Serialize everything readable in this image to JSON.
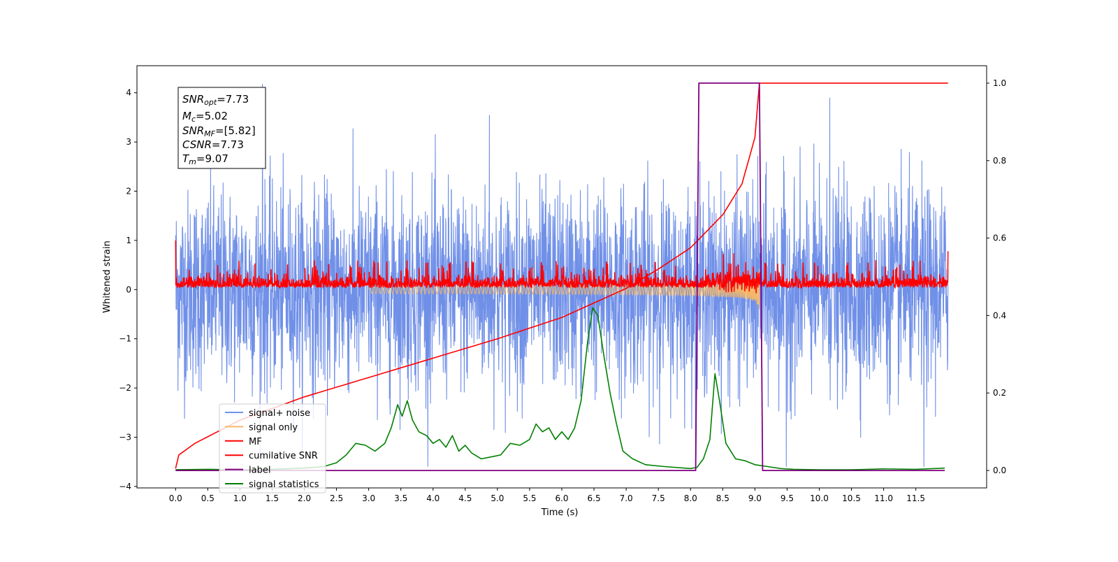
{
  "chart_data": {
    "type": "line",
    "xlabel": "Time (s)",
    "ylabel": "Whitened strain",
    "xlim": [
      -0.6,
      12.6
    ],
    "ylim_left": [
      -4.03,
      4.55
    ],
    "ylim_right": [
      -0.045,
      1.045
    ],
    "x_ticks": [
      "0.0",
      "0.5",
      "1.0",
      "1.5",
      "2.0",
      "2.5",
      "3.0",
      "3.5",
      "4.0",
      "4.5",
      "5.0",
      "5.5",
      "6.0",
      "6.5",
      "7.0",
      "7.5",
      "8.0",
      "8.5",
      "9.0",
      "9.5",
      "10.0",
      "10.5",
      "11.0",
      "11.5"
    ],
    "y_ticks_left": [
      "4",
      "3",
      "2",
      "1",
      "0",
      "−1",
      "−2",
      "−3",
      "−4"
    ],
    "y_ticks_right": [
      "1.0",
      "0.8",
      "0.6",
      "0.4",
      "0.2",
      "0.0"
    ],
    "grid": false,
    "legend_position": "lower-left",
    "legend": [
      {
        "label": "signal+ noise",
        "color": "#7090e8"
      },
      {
        "label": "signal only",
        "color": "#f5b86a"
      },
      {
        "label": "MF",
        "color": "#ff0000"
      },
      {
        "label": "cumilative SNR",
        "color": "#ff0000"
      },
      {
        "label": "label",
        "color": "#800080"
      },
      {
        "label": "signal statistics",
        "color": "#008000"
      }
    ],
    "info_box": {
      "snr_opt": {
        "sym": "SNR",
        "sub": "opt",
        "val": "=7.73"
      },
      "mc": {
        "sym": "M",
        "sub": "c",
        "val": "=5.02"
      },
      "snr_mf": {
        "sym": "SNR",
        "sub": "MF",
        "val": "=[5.82]"
      },
      "csnr": {
        "sym": "CSNR",
        "val": "=7.73"
      },
      "tm": {
        "sym": "T",
        "sub": "m",
        "val": "=9.07"
      }
    },
    "series": [
      {
        "name": "signal+ noise",
        "axis": "left",
        "color": "#7090e8",
        "description_values": {
          "x_range": [
            0.0,
            12.0
          ],
          "mean": 0.0,
          "std": 1.0,
          "max": 4.18,
          "min": -3.6
        }
      },
      {
        "name": "signal only",
        "axis": "left",
        "color": "#f5b86a",
        "chirp": {
          "t_start": 3.0,
          "t_merger": 9.07,
          "peak_amplitude": 0.6
        }
      },
      {
        "name": "MF",
        "axis": "left",
        "color": "#ff0000",
        "description_values": {
          "x_range": [
            0.0,
            12.0
          ],
          "baseline": 0.1,
          "max": 1.0,
          "min": -0.26
        }
      },
      {
        "name": "cumilative SNR",
        "axis": "right",
        "color": "#ff0000",
        "points": [
          [
            0.0,
            0.005
          ],
          [
            0.05,
            0.04
          ],
          [
            0.3,
            0.07
          ],
          [
            1.0,
            0.13
          ],
          [
            2.0,
            0.19
          ],
          [
            3.0,
            0.24
          ],
          [
            4.0,
            0.29
          ],
          [
            5.0,
            0.34
          ],
          [
            6.0,
            0.395
          ],
          [
            7.0,
            0.47
          ],
          [
            7.5,
            0.52
          ],
          [
            8.0,
            0.575
          ],
          [
            8.5,
            0.66
          ],
          [
            8.8,
            0.74
          ],
          [
            9.0,
            0.86
          ],
          [
            9.07,
            1.0
          ],
          [
            12.0,
            1.0
          ]
        ]
      },
      {
        "name": "label",
        "axis": "right",
        "color": "#800080",
        "points": [
          [
            0.0,
            0.0
          ],
          [
            8.08,
            0.0
          ],
          [
            8.13,
            1.0
          ],
          [
            9.07,
            1.0
          ],
          [
            9.12,
            0.0
          ],
          [
            11.95,
            0.0
          ]
        ]
      },
      {
        "name": "signal statistics",
        "axis": "right",
        "color": "#008000",
        "points": [
          [
            0.0,
            0.002
          ],
          [
            0.5,
            0.003
          ],
          [
            1.0,
            0.002
          ],
          [
            1.5,
            0.003
          ],
          [
            2.0,
            0.006
          ],
          [
            2.3,
            0.01
          ],
          [
            2.5,
            0.02
          ],
          [
            2.65,
            0.04
          ],
          [
            2.8,
            0.07
          ],
          [
            2.95,
            0.065
          ],
          [
            3.1,
            0.05
          ],
          [
            3.25,
            0.07
          ],
          [
            3.35,
            0.11
          ],
          [
            3.45,
            0.17
          ],
          [
            3.52,
            0.14
          ],
          [
            3.6,
            0.18
          ],
          [
            3.68,
            0.13
          ],
          [
            3.78,
            0.1
          ],
          [
            3.9,
            0.09
          ],
          [
            4.0,
            0.07
          ],
          [
            4.1,
            0.08
          ],
          [
            4.2,
            0.06
          ],
          [
            4.3,
            0.09
          ],
          [
            4.4,
            0.05
          ],
          [
            4.5,
            0.065
          ],
          [
            4.6,
            0.045
          ],
          [
            4.75,
            0.03
          ],
          [
            4.9,
            0.035
          ],
          [
            5.05,
            0.04
          ],
          [
            5.2,
            0.07
          ],
          [
            5.35,
            0.065
          ],
          [
            5.5,
            0.08
          ],
          [
            5.6,
            0.12
          ],
          [
            5.7,
            0.1
          ],
          [
            5.8,
            0.11
          ],
          [
            5.9,
            0.08
          ],
          [
            6.0,
            0.1
          ],
          [
            6.1,
            0.08
          ],
          [
            6.2,
            0.11
          ],
          [
            6.3,
            0.18
          ],
          [
            6.4,
            0.33
          ],
          [
            6.48,
            0.42
          ],
          [
            6.56,
            0.4
          ],
          [
            6.65,
            0.3
          ],
          [
            6.75,
            0.2
          ],
          [
            6.85,
            0.12
          ],
          [
            6.95,
            0.05
          ],
          [
            7.1,
            0.03
          ],
          [
            7.3,
            0.015
          ],
          [
            7.6,
            0.01
          ],
          [
            8.0,
            0.005
          ],
          [
            8.1,
            0.008
          ],
          [
            8.2,
            0.03
          ],
          [
            8.3,
            0.08
          ],
          [
            8.38,
            0.25
          ],
          [
            8.45,
            0.18
          ],
          [
            8.55,
            0.07
          ],
          [
            8.7,
            0.03
          ],
          [
            8.85,
            0.025
          ],
          [
            9.0,
            0.015
          ],
          [
            9.2,
            0.01
          ],
          [
            9.4,
            0.005
          ],
          [
            9.6,
            0.003
          ],
          [
            10.0,
            0.002
          ],
          [
            10.5,
            0.002
          ],
          [
            11.0,
            0.004
          ],
          [
            11.5,
            0.003
          ],
          [
            11.95,
            0.006
          ]
        ]
      }
    ]
  }
}
